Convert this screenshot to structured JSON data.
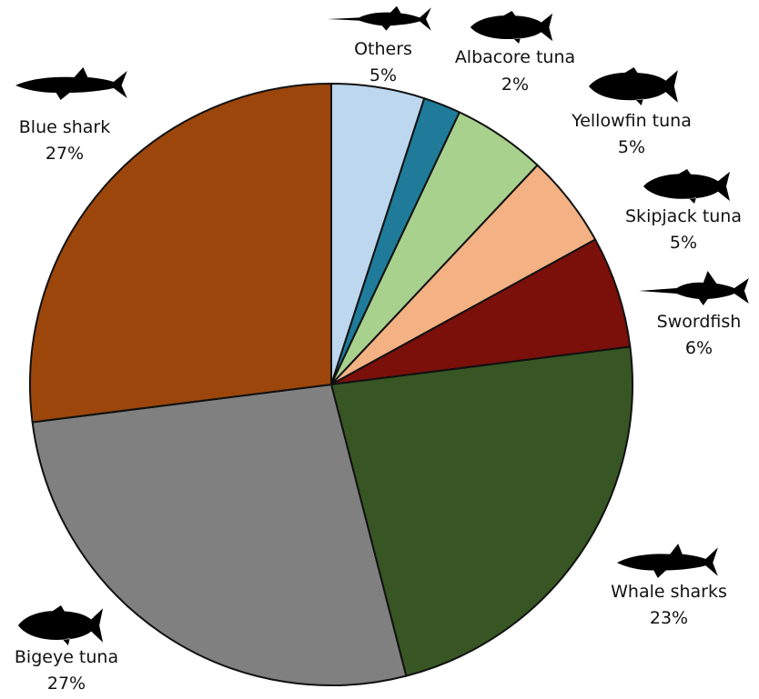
{
  "chart_data": {
    "type": "pie",
    "title": "",
    "slices": [
      {
        "name": "Others",
        "percent_label": "5%",
        "value": 5,
        "color": "#bdd7ee",
        "icon": "billfish-icon"
      },
      {
        "name": "Albacore tuna",
        "percent_label": "2%",
        "value": 2,
        "color": "#1f7b99",
        "icon": "tuna-icon"
      },
      {
        "name": "Yellowfin tuna",
        "percent_label": "5%",
        "value": 5,
        "color": "#a9d18e",
        "icon": "tuna-icon"
      },
      {
        "name": "Skipjack tuna",
        "percent_label": "5%",
        "value": 5,
        "color": "#f4b183",
        "icon": "tuna-icon"
      },
      {
        "name": "Swordfish",
        "percent_label": "6%",
        "value": 6,
        "color": "#7b0f0a",
        "icon": "swordfish-icon"
      },
      {
        "name": "Whale sharks",
        "percent_label": "23%",
        "value": 23,
        "color": "#375623",
        "icon": "shark-icon"
      },
      {
        "name": "Bigeye tuna",
        "percent_label": "27%",
        "value": 27,
        "color": "#808080",
        "icon": "tuna-icon"
      },
      {
        "name": "Blue shark",
        "percent_label": "27%",
        "value": 27,
        "color": "#9c460c",
        "icon": "shark-icon"
      }
    ]
  }
}
